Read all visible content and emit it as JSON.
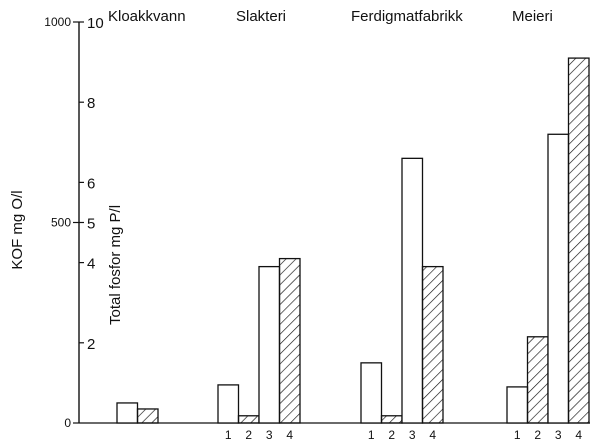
{
  "chart_data": {
    "type": "bar",
    "groups": [
      "Kloakkvann",
      "Slakteri",
      "Ferdigmatfabrikk",
      "Meieri"
    ],
    "bar_labels": [
      "1",
      "2",
      "3",
      "4"
    ],
    "left_axis": {
      "label": "KOF mg O/l",
      "range": [
        0,
        1000
      ],
      "ticks": [
        {
          "value": 0,
          "label": "0"
        },
        {
          "value": 500,
          "label": "500"
        },
        {
          "value": 1000,
          "label": "1000"
        }
      ]
    },
    "right_axis": {
      "label": "Total fosfor mg P/l",
      "range": [
        0,
        10
      ],
      "ticks": [
        {
          "value": 2,
          "label": "2"
        },
        {
          "value": 4,
          "label": "4"
        },
        {
          "value": 5,
          "label": "5"
        },
        {
          "value": 6,
          "label": "6"
        },
        {
          "value": 8,
          "label": "8"
        },
        {
          "value": 10,
          "label": "10"
        }
      ]
    },
    "series": [
      {
        "axis": "left",
        "fill": "plain",
        "bar_index": 0,
        "values": [
          50,
          95,
          150,
          90
        ]
      },
      {
        "axis": "left",
        "fill": "hatched",
        "bar_index": 1,
        "values": [
          35,
          18,
          18,
          215
        ]
      },
      {
        "axis": "right",
        "fill": "plain",
        "bar_index": 2,
        "values": [
          null,
          3.9,
          6.6,
          7.2
        ]
      },
      {
        "axis": "right",
        "fill": "hatched",
        "bar_index": 3,
        "values": [
          null,
          4.1,
          3.9,
          9.1
        ]
      }
    ],
    "bar_label_groups": [
      1,
      2,
      3
    ],
    "colors": {
      "ink": "#111111",
      "background": "#ffffff"
    }
  }
}
